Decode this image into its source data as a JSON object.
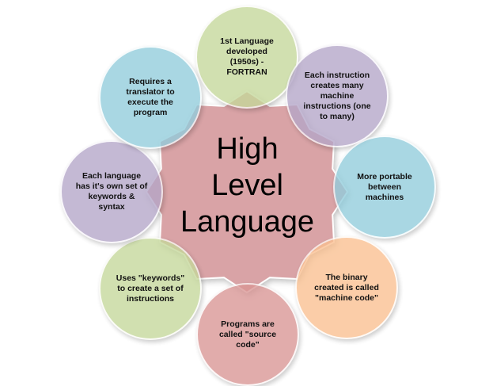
{
  "center": {
    "lines": [
      "High",
      "Level",
      "Language"
    ],
    "color": "#d9a3a6"
  },
  "nodes": [
    {
      "id": "top",
      "lines": [
        "1st Language",
        "developed",
        "(1950s) -",
        "FORTRAN"
      ],
      "color": "#c5d89a"
    },
    {
      "id": "top-right",
      "lines": [
        "Each instruction",
        "creates many",
        "machine",
        "instructions (one",
        "to many)"
      ],
      "color": "#b4a6c8"
    },
    {
      "id": "right",
      "lines": [
        "More portable",
        "between",
        "machines"
      ],
      "color": "#92cddc"
    },
    {
      "id": "bottom-right",
      "lines": [
        "The binary",
        "created is called",
        "\"machine code\""
      ],
      "color": "#fac090"
    },
    {
      "id": "bottom",
      "lines": [
        "Programs are",
        "called \"source",
        "code\""
      ],
      "color": "#d99594"
    },
    {
      "id": "bottom-left",
      "lines": [
        "Uses \"keywords\"",
        "to create a set of",
        "instructions"
      ],
      "color": "#c5d89a"
    },
    {
      "id": "left",
      "lines": [
        "Each language",
        "has it's own set of",
        "keywords &",
        "syntax"
      ],
      "color": "#b4a6c8"
    },
    {
      "id": "top-left",
      "lines": [
        "Requires a",
        "translator to",
        "execute the",
        "program"
      ],
      "color": "#92cddc"
    }
  ]
}
